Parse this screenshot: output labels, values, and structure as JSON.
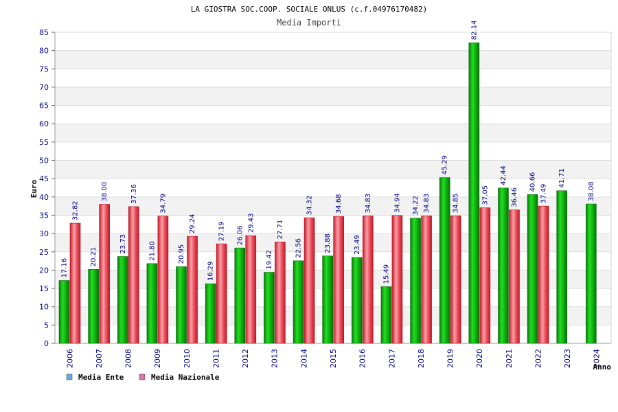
{
  "chart_data": {
    "type": "bar",
    "title": "LA GIOSTRA SOC.COOP. SOCIALE ONLUS (c.f.04976170482)",
    "subtitle": "Media Importi",
    "xlabel": "Anno",
    "ylabel": "Euro",
    "ylim": [
      0,
      85
    ],
    "yticks": [
      0,
      5,
      10,
      15,
      20,
      25,
      30,
      35,
      40,
      45,
      50,
      55,
      60,
      65,
      70,
      75,
      80,
      85
    ],
    "grid": true,
    "legend_position": "bottom-left",
    "categories": [
      "2006",
      "2007",
      "2008",
      "2009",
      "2010",
      "2011",
      "2012",
      "2013",
      "2014",
      "2015",
      "2016",
      "2017",
      "2018",
      "2019",
      "2020",
      "2021",
      "2022",
      "2023",
      "2024"
    ],
    "series": [
      {
        "name": "Media Ente",
        "color": "#11aa11",
        "legend_color": "#66aaee",
        "values": [
          17.16,
          20.21,
          23.73,
          21.8,
          20.95,
          16.29,
          26.06,
          19.42,
          22.56,
          23.88,
          23.49,
          15.49,
          34.22,
          45.29,
          82.14,
          42.44,
          40.66,
          41.71,
          38.08
        ],
        "labels": [
          "17.16",
          "20.21",
          "23.73",
          "21.80",
          "20.95",
          "16.29",
          "26.06",
          "19.42",
          "22.56",
          "23.88",
          "23.49",
          "15.49",
          "34.22",
          "45.29",
          "82.14",
          "42.44",
          "40.66",
          "41.71",
          "38.08"
        ]
      },
      {
        "name": "Media Nazionale",
        "color": "#ee3344",
        "legend_color": "#dd77aa",
        "values": [
          32.82,
          38.0,
          37.36,
          34.79,
          29.24,
          27.19,
          29.43,
          27.71,
          34.32,
          34.68,
          34.83,
          34.94,
          34.83,
          34.85,
          37.05,
          36.46,
          37.49,
          null,
          null
        ],
        "labels": [
          "32.82",
          "38.00",
          "37.36",
          "34.79",
          "29.24",
          "27.19",
          "29.43",
          "27.71",
          "34.32",
          "34.68",
          "34.83",
          "34.94",
          "34.83",
          "34.85",
          "37.05",
          "36.46",
          "37.49",
          "",
          ""
        ]
      }
    ]
  }
}
